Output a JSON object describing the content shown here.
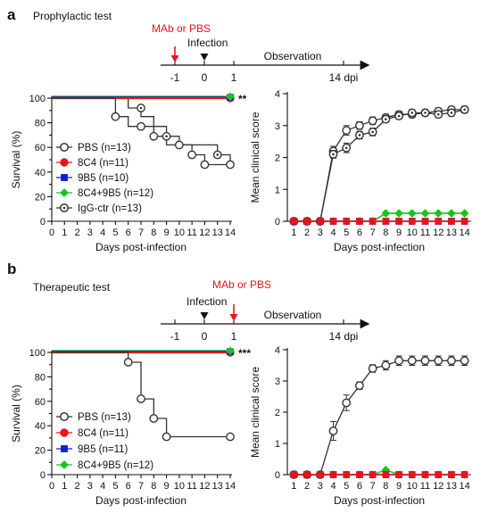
{
  "panels": [
    {
      "letter": "a",
      "title": "Prophylactic test",
      "timeline": {
        "ticks": [
          "-1",
          "0",
          "1",
          "14 dpi"
        ],
        "red_label": "MAb or PBS",
        "black_label": "Infection",
        "observation": "Observation",
        "red_at": "-1",
        "black_at": "0"
      },
      "significance": "**"
    },
    {
      "letter": "b",
      "title": "Therapeutic test",
      "timeline": {
        "ticks": [
          "-1",
          "0",
          "1",
          "14 dpi"
        ],
        "red_label": "MAb or PBS",
        "black_label": "Infection",
        "observation": "Observation",
        "red_at": "1",
        "black_at": "0"
      },
      "significance": "***"
    }
  ],
  "colors": {
    "red": "#e8141b",
    "blue": "#1020c8",
    "green": "#16c41a",
    "dark": "#333333"
  },
  "chart_data": [
    {
      "type": "line",
      "panel": "a",
      "xlabel": "Days post-infection",
      "ylabel": "Survival (%)",
      "xlim": [
        0,
        14
      ],
      "ylim": [
        0,
        100
      ],
      "xticks": [
        0,
        1,
        2,
        3,
        4,
        5,
        6,
        7,
        8,
        9,
        10,
        11,
        12,
        13,
        14
      ],
      "yticks": [
        0,
        10,
        20,
        30,
        40,
        50,
        60,
        70,
        80,
        90,
        100
      ],
      "legend_position": "bottom-left",
      "series": [
        {
          "name": "PBS (n=13)",
          "marker": "open-circle",
          "color": "#333333",
          "steps": [
            [
              0,
              100
            ],
            [
              5,
              100
            ],
            [
              5,
              85
            ],
            [
              6,
              85
            ],
            [
              6,
              77
            ],
            [
              8,
              77
            ],
            [
              8,
              69
            ],
            [
              9,
              69
            ],
            [
              9,
              62
            ],
            [
              11,
              62
            ],
            [
              11,
              54
            ],
            [
              12,
              54
            ],
            [
              12,
              46
            ],
            [
              14,
              46
            ]
          ],
          "markers": [
            [
              5,
              85
            ],
            [
              7,
              77
            ],
            [
              8,
              69
            ],
            [
              10,
              62
            ],
            [
              11,
              54
            ],
            [
              12,
              46
            ],
            [
              14,
              46
            ]
          ]
        },
        {
          "name": "8C4 (n=11)",
          "marker": "filled-circle",
          "color": "#e8141b",
          "steps": [
            [
              0,
              100
            ],
            [
              14,
              100
            ]
          ],
          "markers": [
            [
              14,
              100
            ]
          ]
        },
        {
          "name": "9B5 (n=10)",
          "marker": "filled-square",
          "color": "#1020c8",
          "steps": [
            [
              0,
              100.6
            ],
            [
              14,
              100.6
            ]
          ],
          "markers": [
            [
              14,
              100.6
            ]
          ]
        },
        {
          "name": "8C4+9B5 (n=12)",
          "marker": "filled-diamond",
          "color": "#16c41a",
          "steps": [
            [
              0,
              101.2
            ],
            [
              14,
              101.2
            ]
          ],
          "markers": [
            [
              14,
              101.2
            ]
          ]
        },
        {
          "name": "IgG-ctr (n=13)",
          "marker": "dotted-circle",
          "color": "#333333",
          "steps": [
            [
              0,
              100
            ],
            [
              6,
              100
            ],
            [
              6,
              92
            ],
            [
              7,
              92
            ],
            [
              7,
              85
            ],
            [
              8,
              85
            ],
            [
              8,
              77
            ],
            [
              9,
              77
            ],
            [
              9,
              69
            ],
            [
              10,
              69
            ],
            [
              10,
              62
            ],
            [
              13,
              62
            ],
            [
              13,
              54
            ],
            [
              14,
              54
            ],
            [
              14,
              46
            ]
          ],
          "markers": [
            [
              7,
              92
            ],
            [
              9,
              69
            ],
            [
              13,
              54
            ]
          ]
        }
      ]
    },
    {
      "type": "line",
      "panel": "a",
      "xlabel": "Days post-infection",
      "ylabel": "Mean clinical score",
      "xlim": [
        0.5,
        14.5
      ],
      "ylim": [
        0,
        4
      ],
      "xticks": [
        1,
        2,
        3,
        4,
        5,
        6,
        7,
        8,
        9,
        10,
        11,
        12,
        13,
        14
      ],
      "yticks": [
        0,
        1,
        2,
        3,
        4
      ],
      "series": [
        {
          "marker": "open-circle",
          "color": "#333333",
          "x": [
            1,
            2,
            3,
            4,
            5,
            6,
            7,
            8,
            9,
            10,
            11,
            12,
            13,
            14
          ],
          "y": [
            0,
            0,
            0,
            2.2,
            2.85,
            3.0,
            3.15,
            3.25,
            3.35,
            3.35,
            3.4,
            3.45,
            3.5,
            3.5
          ],
          "err": [
            0,
            0,
            0,
            0.15,
            0.15,
            0.12,
            0.12,
            0.1,
            0.1,
            0.1,
            0.1,
            0.1,
            0.1,
            0.1
          ]
        },
        {
          "marker": "dotted-circle",
          "color": "#333333",
          "x": [
            1,
            2,
            3,
            4,
            5,
            6,
            7,
            8,
            9,
            10,
            11,
            12,
            13,
            14
          ],
          "y": [
            0,
            0,
            0,
            2.1,
            2.3,
            2.7,
            2.8,
            3.2,
            3.3,
            3.4,
            3.4,
            3.35,
            3.4,
            3.5
          ],
          "err": [
            0,
            0,
            0,
            0.12,
            0.15,
            0.12,
            0.12,
            0.1,
            0.1,
            0.1,
            0.1,
            0.1,
            0.1,
            0.1
          ]
        },
        {
          "marker": "filled-diamond",
          "color": "#16c41a",
          "x": [
            1,
            2,
            3,
            4,
            5,
            6,
            7,
            8,
            9,
            10,
            11,
            12,
            13,
            14
          ],
          "y": [
            0,
            0,
            0,
            0,
            0,
            0,
            0,
            0.25,
            0.25,
            0.25,
            0.25,
            0.25,
            0.25,
            0.25
          ],
          "err": []
        },
        {
          "marker": "filled-square",
          "color": "#1020c8",
          "x": [
            1,
            2,
            3,
            4,
            5,
            6,
            7,
            8,
            9,
            10,
            11,
            12,
            13,
            14
          ],
          "y": [
            0,
            0,
            0,
            0,
            0,
            0,
            0,
            0,
            0,
            0,
            0,
            0,
            0,
            0
          ],
          "err": []
        },
        {
          "marker": "filled-square",
          "color": "#e8141b",
          "x": [
            1,
            2,
            3,
            4,
            5,
            6,
            7,
            8,
            9,
            10,
            11,
            12,
            13,
            14
          ],
          "y": [
            0,
            0,
            0,
            0,
            0,
            0,
            0,
            0,
            0,
            0,
            0,
            0,
            0,
            0
          ],
          "err": []
        }
      ]
    },
    {
      "type": "line",
      "panel": "b",
      "xlabel": "Days post-infection",
      "ylabel": "Survival (%)",
      "xlim": [
        0,
        14
      ],
      "ylim": [
        0,
        100
      ],
      "xticks": [
        0,
        1,
        2,
        3,
        4,
        5,
        6,
        7,
        8,
        9,
        10,
        11,
        12,
        13,
        14
      ],
      "yticks": [
        0,
        10,
        20,
        30,
        40,
        50,
        60,
        70,
        80,
        90,
        100
      ],
      "legend_position": "bottom-left",
      "series": [
        {
          "name": "PBS (n=13)",
          "marker": "open-circle",
          "color": "#333333",
          "steps": [
            [
              0,
              100
            ],
            [
              6,
              100
            ],
            [
              6,
              92
            ],
            [
              7,
              92
            ],
            [
              7,
              62
            ],
            [
              8,
              62
            ],
            [
              8,
              46
            ],
            [
              9,
              46
            ],
            [
              9,
              31
            ],
            [
              14,
              31
            ]
          ],
          "markers": [
            [
              6,
              92
            ],
            [
              7,
              62
            ],
            [
              8,
              46
            ],
            [
              9,
              31
            ],
            [
              14,
              31
            ]
          ]
        },
        {
          "name": "8C4 (n=11)",
          "marker": "filled-circle",
          "color": "#e8141b",
          "steps": [
            [
              0,
              100
            ],
            [
              14,
              100
            ]
          ],
          "markers": [
            [
              14,
              100
            ]
          ]
        },
        {
          "name": "9B5 (n=11)",
          "marker": "filled-square",
          "color": "#1020c8",
          "steps": [
            [
              0,
              100.6
            ],
            [
              14,
              100.6
            ]
          ],
          "markers": [
            [
              14,
              100.6
            ]
          ]
        },
        {
          "name": "8C4+9B5 (n=12)",
          "marker": "filled-diamond",
          "color": "#16c41a",
          "steps": [
            [
              0,
              101.2
            ],
            [
              14,
              101.2
            ]
          ],
          "markers": [
            [
              14,
              101.2
            ]
          ]
        }
      ]
    },
    {
      "type": "line",
      "panel": "b",
      "xlabel": "Days post-infection",
      "ylabel": "Mean clinical score",
      "xlim": [
        0.5,
        14.5
      ],
      "ylim": [
        0,
        4
      ],
      "xticks": [
        1,
        2,
        3,
        4,
        5,
        6,
        7,
        8,
        9,
        10,
        11,
        12,
        13,
        14
      ],
      "yticks": [
        0,
        1,
        2,
        3,
        4
      ],
      "series": [
        {
          "marker": "open-circle",
          "color": "#333333",
          "x": [
            1,
            2,
            3,
            4,
            5,
            6,
            7,
            8,
            9,
            10,
            11,
            12,
            13,
            14
          ],
          "y": [
            0,
            0,
            0,
            1.4,
            2.3,
            2.85,
            3.4,
            3.5,
            3.65,
            3.65,
            3.65,
            3.65,
            3.65,
            3.65
          ],
          "err": [
            0,
            0,
            0,
            0.3,
            0.25,
            0.12,
            0.12,
            0.15,
            0.15,
            0.15,
            0.15,
            0.15,
            0.15,
            0.15
          ]
        },
        {
          "marker": "filled-diamond",
          "color": "#16c41a",
          "x": [
            1,
            2,
            3,
            4,
            5,
            6,
            7,
            8,
            9,
            10,
            11,
            12,
            13,
            14
          ],
          "y": [
            0,
            0,
            0,
            0,
            0,
            0,
            0,
            0.15,
            0,
            0,
            0,
            0,
            0,
            0
          ],
          "err": []
        },
        {
          "marker": "filled-square",
          "color": "#1020c8",
          "x": [
            1,
            2,
            3,
            4,
            5,
            6,
            7,
            8,
            9,
            10,
            11,
            12,
            13,
            14
          ],
          "y": [
            0,
            0,
            0,
            0,
            0,
            0,
            0,
            0,
            0,
            0,
            0,
            0,
            0,
            0
          ],
          "err": []
        },
        {
          "marker": "filled-square",
          "color": "#e8141b",
          "x": [
            1,
            2,
            3,
            4,
            5,
            6,
            7,
            8,
            9,
            10,
            11,
            12,
            13,
            14
          ],
          "y": [
            0,
            0,
            0,
            0,
            0,
            0,
            0,
            0,
            0,
            0,
            0,
            0,
            0,
            0
          ],
          "err": []
        }
      ]
    }
  ]
}
